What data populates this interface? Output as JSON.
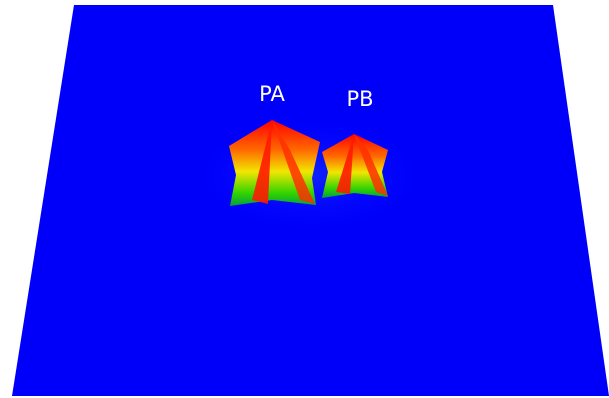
{
  "labels": {
    "peak_a": "PA",
    "peak_b": "PB"
  }
}
